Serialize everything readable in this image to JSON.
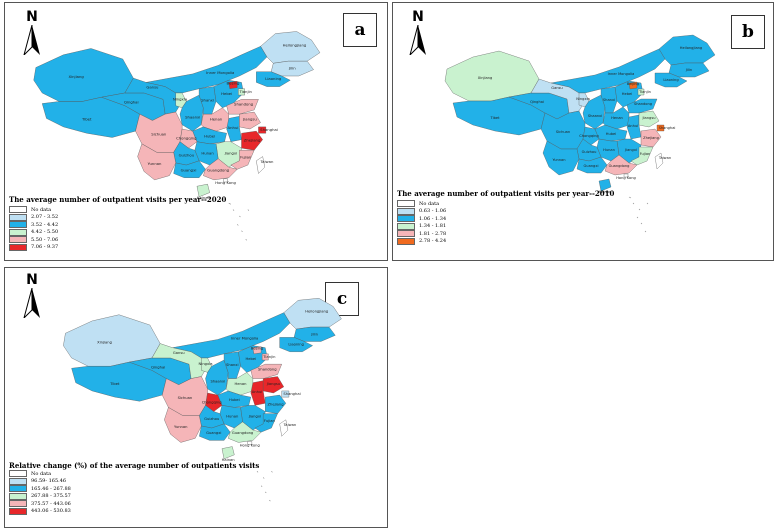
{
  "panels": {
    "a": {
      "label": "a",
      "north": "N",
      "title": "The average number of outpatient visits per year--2020",
      "legend": [
        {
          "label": "No data",
          "color": "#ffffff"
        },
        {
          "label": "2.07 - 3.52",
          "color": "#bfe0f3"
        },
        {
          "label": "3.52 - 4.42",
          "color": "#22b1e8"
        },
        {
          "label": "4.42 - 5.50",
          "color": "#c9f2cf"
        },
        {
          "label": "5.50 - 7.06",
          "color": "#f5b5b8"
        },
        {
          "label": "7.06 - 9.37",
          "color": "#e7272a"
        }
      ]
    },
    "b": {
      "label": "b",
      "north": "N",
      "title": "The average number of outpatient visits per year--2010",
      "legend": [
        {
          "label": "No data",
          "color": "#ffffff"
        },
        {
          "label": "0.63 - 1.06",
          "color": "#bfe0f3"
        },
        {
          "label": "1.06 - 1.34",
          "color": "#22b1e8"
        },
        {
          "label": "1.34 - 1.81",
          "color": "#c9f2cf"
        },
        {
          "label": "1.81 - 2.78",
          "color": "#f5b5b8"
        },
        {
          "label": "2.78 - 4.24",
          "color": "#f06a1f"
        }
      ]
    },
    "c": {
      "label": "c",
      "north": "N",
      "title": "Relative change (%) of the average number of outpatients visits",
      "legend": [
        {
          "label": "No data",
          "color": "#ffffff"
        },
        {
          "label": "96.59- 165.46",
          "color": "#bfe0f3"
        },
        {
          "label": "165.46 - 267.88",
          "color": "#22b1e8"
        },
        {
          "label": "267.88 - 375.57",
          "color": "#c9f2cf"
        },
        {
          "label": "375.57 - 443.06",
          "color": "#f5b5b8"
        },
        {
          "label": "443.06 - 530.83",
          "color": "#e7272a"
        }
      ]
    }
  },
  "regions": [
    "Heilongjiang",
    "Jilin",
    "Liaoning",
    "Inner Mongolia",
    "Xinjiang",
    "Tibet",
    "Qinghai",
    "Gansu",
    "Ningxia",
    "Shaanxi",
    "Shanxi",
    "Hebei",
    "Beijing",
    "Tianjin",
    "Shandong",
    "Henan",
    "Sichuan",
    "Chongqing",
    "Hubei",
    "Anhui",
    "Jiangsu",
    "Shanghai",
    "Zhejiang",
    "Jiangxi",
    "Hunan",
    "Guizhou",
    "Yunnan",
    "Guangxi",
    "Guangdong",
    "Fujian",
    "Hong Kong",
    "Taiwan",
    "Hainan"
  ],
  "region_class": {
    "a": {
      "Heilongjiang": 1,
      "Jilin": 1,
      "Liaoning": 2,
      "Inner Mongolia": 2,
      "Xinjiang": 2,
      "Tibet": 2,
      "Qinghai": 2,
      "Gansu": 2,
      "Ningxia": 3,
      "Shaanxi": 2,
      "Shanxi": 2,
      "Hebei": 2,
      "Beijing": 5,
      "Tianjin": 3,
      "Shandong": 4,
      "Henan": 4,
      "Sichuan": 4,
      "Chongqing": 4,
      "Hubei": 2,
      "Anhui": 2,
      "Jiangsu": 4,
      "Shanghai": 5,
      "Zhejiang": 5,
      "Jiangxi": 3,
      "Hunan": 2,
      "Guizhou": 2,
      "Yunnan": 4,
      "Guangxi": 2,
      "Guangdong": 4,
      "Fujian": 4,
      "Hong Kong": 0,
      "Taiwan": 0,
      "Hainan": 3
    },
    "b": {
      "Heilongjiang": 2,
      "Jilin": 2,
      "Liaoning": 2,
      "Inner Mongolia": 2,
      "Xinjiang": 3,
      "Tibet": 2,
      "Qinghai": 2,
      "Gansu": 1,
      "Ningxia": 1,
      "Shaanxi": 2,
      "Shanxi": 2,
      "Hebei": 2,
      "Beijing": 5,
      "Tianjin": 3,
      "Shandong": 2,
      "Henan": 2,
      "Sichuan": 2,
      "Chongqing": 2,
      "Hubei": 2,
      "Anhui": 2,
      "Jiangsu": 3,
      "Shanghai": 5,
      "Zhejiang": 4,
      "Jiangxi": 2,
      "Hunan": 2,
      "Guizhou": 2,
      "Yunnan": 2,
      "Guangxi": 2,
      "Guangdong": 4,
      "Fujian": 3,
      "Hong Kong": 0,
      "Taiwan": 0,
      "Hainan": 2
    },
    "c": {
      "Heilongjiang": 1,
      "Jilin": 2,
      "Liaoning": 2,
      "Inner Mongolia": 2,
      "Xinjiang": 1,
      "Tibet": 2,
      "Qinghai": 2,
      "Gansu": 3,
      "Ningxia": 3,
      "Shaanxi": 2,
      "Shanxi": 2,
      "Hebei": 2,
      "Beijing": 4,
      "Tianjin": 4,
      "Shandong": 4,
      "Henan": 3,
      "Sichuan": 4,
      "Chongqing": 5,
      "Hubei": 2,
      "Anhui": 5,
      "Jiangsu": 5,
      "Shanghai": 1,
      "Zhejiang": 2,
      "Jiangxi": 2,
      "Hunan": 2,
      "Guizhou": 2,
      "Yunnan": 4,
      "Guangxi": 2,
      "Guangdong": 3,
      "Fujian": 2,
      "Hong Kong": 0,
      "Taiwan": 0,
      "Hainan": 3
    }
  }
}
